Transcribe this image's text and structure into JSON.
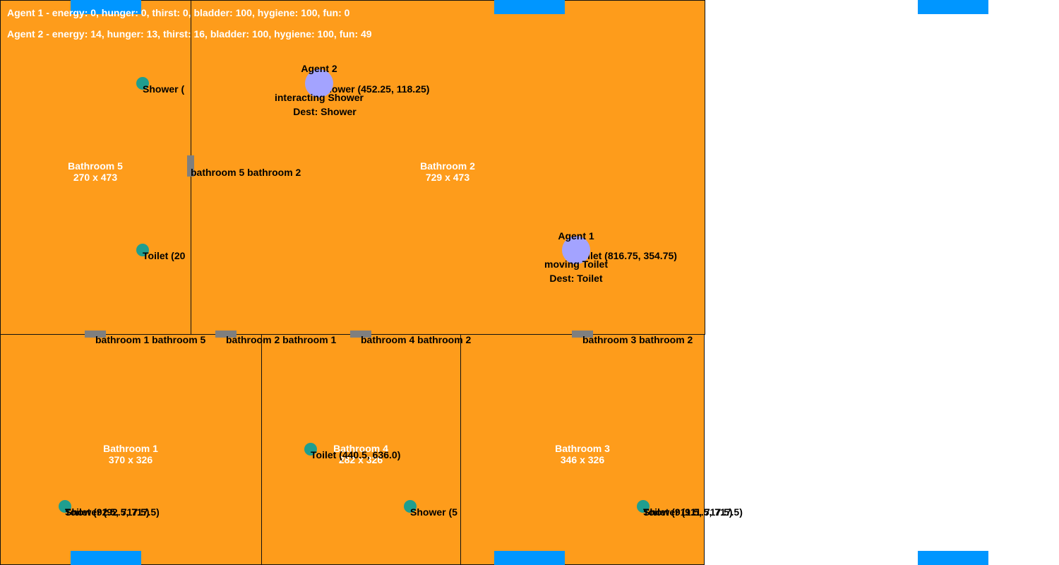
{
  "status": {
    "agent1": "Agent 1 - energy: 0, hunger: 0, thirst: 0, bladder: 100, hygiene: 100, fun: 0",
    "agent2": "Agent 2 - energy: 14, hunger: 13, thirst: 16, bladder: 100, hygiene: 100, fun: 49"
  },
  "rooms": {
    "bathroom5": {
      "name": "Bathroom 5",
      "size": "270 x 473"
    },
    "bathroom2": {
      "name": "Bathroom 2",
      "size": "729 x 473"
    },
    "bathroom1": {
      "name": "Bathroom 1",
      "size": "370 x 326"
    },
    "bathroom4": {
      "name": "Bathroom 4",
      "size": "282 x 326"
    },
    "bathroom3": {
      "name": "Bathroom 3",
      "size": "346 x 326"
    }
  },
  "doors": {
    "d52": "bathroom 5 bathroom 2",
    "d15": "bathroom 1 bathroom 5",
    "d21": "bathroom 2 bathroom 1",
    "d42": "bathroom 4 bathroom 2",
    "d32": "bathroom 3 bathroom 2"
  },
  "objects": {
    "b5_shower": "Shower (",
    "b5_toilet": "Toilet (20",
    "b2_shower": "Shower (452.25, 118.25)",
    "b2_toilet": "Toilet (816.75, 354.75)",
    "b1_toilet": "Toilet (92.5, 717.5)",
    "b1_shower": "Shower (92.5, 717.5)",
    "b4_toilet": "Toilet (440.5, 636.0)",
    "b4_shower": "Shower (5",
    "b3_toilet": "Toilet (911.5, 717.5)",
    "b3_shower": "Shower (911.5, 717.5)"
  },
  "agents": {
    "agent1": {
      "name": "Agent 1",
      "state": "moving Toilet",
      "dest": "Dest: Toilet"
    },
    "agent2": {
      "name": "Agent 2",
      "state": "interacting Shower",
      "dest": "Dest: Shower"
    }
  },
  "colors": {
    "floor": "#fe9c1b",
    "window": "#0096ff",
    "door": "#7f7f7f",
    "object": "#1f9e8f",
    "agent": "#a3a3ff"
  }
}
